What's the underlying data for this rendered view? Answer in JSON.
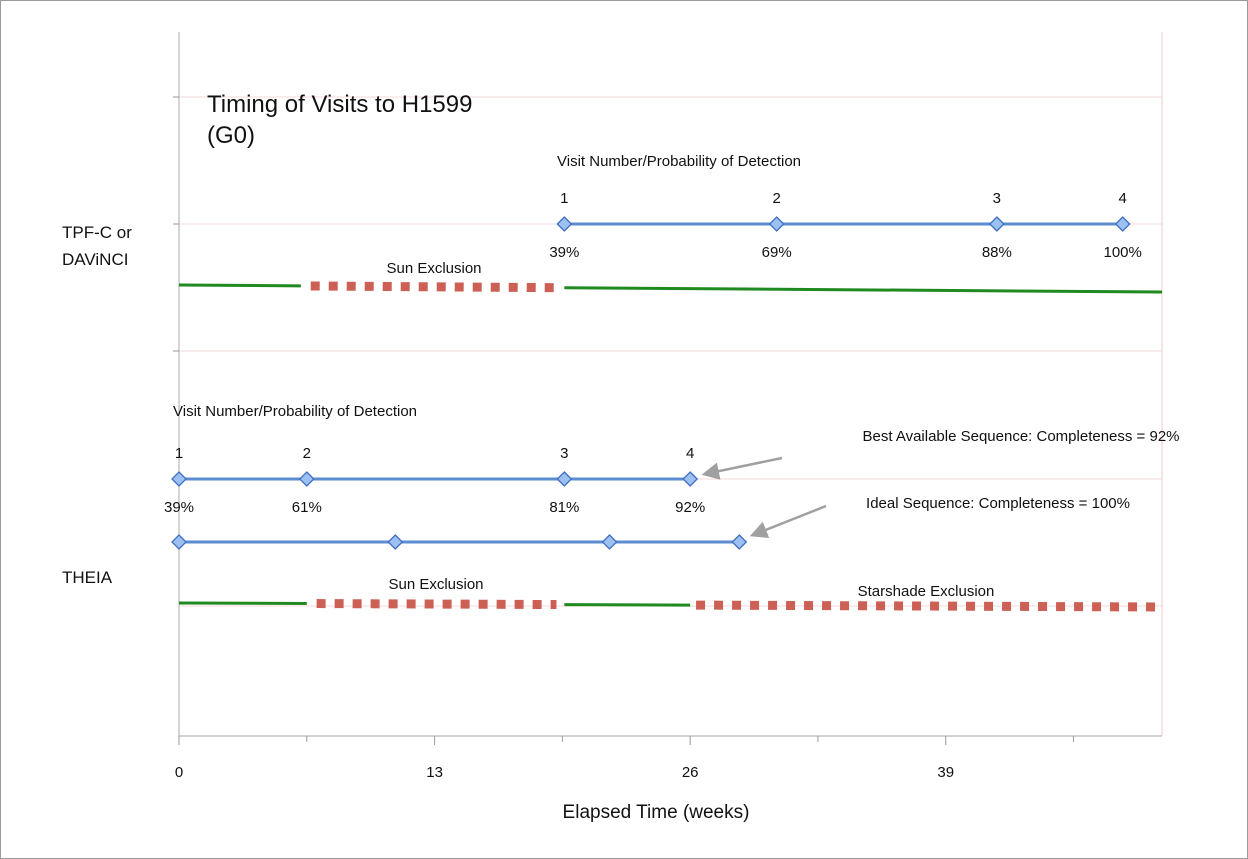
{
  "chart_data": {
    "type": "line",
    "title": [
      "Timing of Visits to H1599",
      "(G0)"
    ],
    "xlabel": "Elapsed Time (weeks)",
    "x_ticks": [
      0,
      13,
      26,
      39
    ],
    "xlim": [
      0,
      50
    ],
    "grid": true,
    "rows": [
      {
        "name": "TPF-C or DAViNCI",
        "lines": [
          "TPF-C or",
          "DAViNCI"
        ]
      },
      {
        "name": "THEIA",
        "lines": [
          "THEIA"
        ]
      }
    ],
    "header_label": "Visit Number/Probability of Detection",
    "series": [
      {
        "row": "TPF-C or DAViNCI",
        "visits": [
          {
            "week": 19.6,
            "number": "1",
            "probability": "39%"
          },
          {
            "week": 30.4,
            "number": "2",
            "probability": "69%"
          },
          {
            "week": 41.6,
            "number": "3",
            "probability": "88%"
          },
          {
            "week": 48.0,
            "number": "4",
            "probability": "100%"
          }
        ]
      },
      {
        "row": "THEIA",
        "name": "Best Available Sequence: Completeness = 92%",
        "visits": [
          {
            "week": 0,
            "number": "1",
            "probability": "39%"
          },
          {
            "week": 6.5,
            "number": "2",
            "probability": "61%"
          },
          {
            "week": 19.6,
            "number": "3",
            "probability": "81%"
          },
          {
            "week": 26.0,
            "number": "4",
            "probability": "92%"
          }
        ]
      },
      {
        "row": "THEIA",
        "name": "Ideal Sequence: Completeness = 100%",
        "visits": [
          {
            "week": 0
          },
          {
            "week": 11.0
          },
          {
            "week": 21.9
          },
          {
            "week": 28.5
          }
        ]
      }
    ],
    "availability": [
      {
        "row": "TPF-C or DAViNCI",
        "kind": "available",
        "from": 0,
        "to": 6.2
      },
      {
        "row": "TPF-C or DAViNCI",
        "kind": "excluded",
        "from": 6.7,
        "to": 19.2,
        "label": "Sun Exclusion"
      },
      {
        "row": "TPF-C or DAViNCI",
        "kind": "available",
        "from": 19.6,
        "to": 50
      },
      {
        "row": "THEIA",
        "kind": "available",
        "from": 0,
        "to": 6.5
      },
      {
        "row": "THEIA",
        "kind": "excluded",
        "from": 7.0,
        "to": 19.2,
        "label": "Sun Exclusion"
      },
      {
        "row": "THEIA",
        "kind": "available",
        "from": 19.6,
        "to": 26.0
      },
      {
        "row": "THEIA",
        "kind": "excluded",
        "from": 26.3,
        "to": 50,
        "label": "Starshade Exclusion"
      }
    ],
    "colors": {
      "visit_line": "#5b8dd0",
      "marker_fill": "#9cc0f2",
      "marker_stroke": "#3f6fc0",
      "available": "#1f8a1f",
      "excluded": "#cc6055",
      "grid": "#f6d8d8",
      "arrow": "#a0a0a0"
    }
  }
}
